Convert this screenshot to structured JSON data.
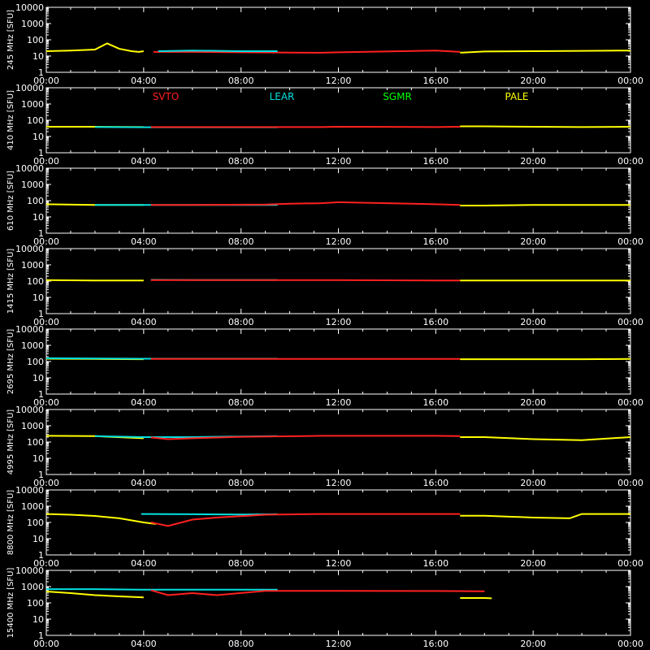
{
  "chart_data": {
    "type": "line",
    "xlim": [
      0,
      24
    ],
    "x_tick_labels": [
      "00:00",
      "04:00",
      "08:00",
      "12:00",
      "16:00",
      "20:00",
      "00:00"
    ],
    "y_scale": "log",
    "ylim": [
      1,
      10000
    ],
    "y_tick_labels": [
      "1",
      "10",
      "100",
      "1000",
      "10000"
    ],
    "ylabel_unit": "[SFU]",
    "legend": [
      {
        "label": "SVTO",
        "color": "#ff2020"
      },
      {
        "label": "LEAR",
        "color": "#00e0e0"
      },
      {
        "label": "SGMR",
        "color": "#00ff00"
      },
      {
        "label": "PALE",
        "color": "#ffff00"
      }
    ],
    "panels": [
      {
        "label": "245 MHz",
        "series": {
          "PALE": [
            [
              0,
              20
            ],
            [
              1,
              22
            ],
            [
              2,
              25
            ],
            [
              2.5,
              60
            ],
            [
              3,
              28
            ],
            [
              3.5,
              20
            ],
            [
              3.8,
              18
            ],
            [
              4,
              20
            ]
          ],
          "SVTO": [
            [
              4.4,
              18
            ],
            [
              6,
              18
            ],
            [
              8,
              17
            ],
            [
              11.3,
              16
            ],
            [
              12,
              17
            ],
            [
              16,
              22
            ],
            [
              17,
              18
            ]
          ],
          "LEAR": [
            [
              4.6,
              20
            ],
            [
              6,
              22
            ],
            [
              8,
              20
            ],
            [
              9.5,
              20
            ]
          ],
          "PALE2": [
            [
              17,
              16
            ],
            [
              18,
              19
            ],
            [
              20,
              20
            ],
            [
              22,
              21
            ],
            [
              24,
              22
            ]
          ]
        }
      },
      {
        "label": "410 MHz",
        "series": {
          "PALE": [
            [
              0,
              40
            ],
            [
              2,
              40
            ],
            [
              4,
              38
            ]
          ],
          "LEAR": [
            [
              2,
              38
            ],
            [
              4,
              37
            ],
            [
              6,
              37
            ],
            [
              9.5,
              37
            ]
          ],
          "SVTO": [
            [
              4.3,
              38
            ],
            [
              6,
              38
            ],
            [
              8,
              38
            ],
            [
              11.3,
              38
            ],
            [
              12,
              40
            ],
            [
              16,
              38
            ],
            [
              17,
              40
            ]
          ],
          "PALE2": [
            [
              17,
              42
            ],
            [
              18,
              42
            ],
            [
              20,
              40
            ],
            [
              22,
              38
            ],
            [
              24,
              40
            ]
          ]
        }
      },
      {
        "label": "610 MHz",
        "series": {
          "PALE": [
            [
              0,
              60
            ],
            [
              2,
              55
            ],
            [
              4,
              55
            ]
          ],
          "LEAR": [
            [
              2,
              55
            ],
            [
              4,
              55
            ],
            [
              6,
              55
            ],
            [
              9.5,
              55
            ]
          ],
          "SVTO": [
            [
              4.3,
              55
            ],
            [
              6,
              55
            ],
            [
              9,
              58
            ],
            [
              10,
              65
            ],
            [
              11.3,
              70
            ],
            [
              12,
              80
            ],
            [
              14,
              70
            ],
            [
              16,
              60
            ],
            [
              17,
              55
            ]
          ],
          "PALE2": [
            [
              17,
              50
            ],
            [
              18,
              50
            ],
            [
              20,
              55
            ],
            [
              22,
              55
            ],
            [
              24,
              55
            ]
          ]
        }
      },
      {
        "label": "1415 MHz",
        "series": {
          "PALE": [
            [
              0,
              115
            ],
            [
              2,
              110
            ],
            [
              4,
              110
            ]
          ],
          "LEAR": [
            [
              4.3,
              120
            ],
            [
              6,
              118
            ],
            [
              9.5,
              118
            ]
          ],
          "SVTO": [
            [
              4.3,
              115
            ],
            [
              6,
              115
            ],
            [
              9,
              115
            ],
            [
              11.3,
              115
            ],
            [
              12,
              115
            ],
            [
              16,
              110
            ],
            [
              17,
              110
            ]
          ],
          "PALE2": [
            [
              17,
              110
            ],
            [
              20,
              108
            ],
            [
              22,
              108
            ],
            [
              24,
              110
            ]
          ]
        }
      },
      {
        "label": "2695 MHz",
        "series": {
          "PALE": [
            [
              0,
              150
            ],
            [
              2,
              145
            ],
            [
              4,
              140
            ]
          ],
          "LEAR": [
            [
              0,
              160
            ],
            [
              4,
              150
            ],
            [
              6,
              150
            ],
            [
              9.5,
              150
            ]
          ],
          "SVTO": [
            [
              4.3,
              145
            ],
            [
              6,
              145
            ],
            [
              9,
              145
            ],
            [
              11.3,
              145
            ],
            [
              12,
              145
            ],
            [
              16,
              145
            ],
            [
              17,
              145
            ]
          ],
          "PALE2": [
            [
              17,
              140
            ],
            [
              20,
              140
            ],
            [
              22,
              140
            ],
            [
              24,
              145
            ]
          ]
        }
      },
      {
        "label": "4995 MHz",
        "series": {
          "PALE": [
            [
              0,
              240
            ],
            [
              2,
              230
            ],
            [
              4,
              170
            ]
          ],
          "LEAR": [
            [
              2,
              230
            ],
            [
              4,
              200
            ],
            [
              6,
              200
            ],
            [
              9.5,
              230
            ]
          ],
          "SVTO": [
            [
              4.3,
              190
            ],
            [
              5,
              150
            ],
            [
              6,
              170
            ],
            [
              8,
              210
            ],
            [
              11.3,
              240
            ],
            [
              12,
              240
            ],
            [
              16,
              240
            ],
            [
              17,
              230
            ]
          ],
          "PALE2": [
            [
              17,
              200
            ],
            [
              18,
              200
            ],
            [
              20,
              150
            ],
            [
              22,
              130
            ],
            [
              24,
              200
            ]
          ]
        }
      },
      {
        "label": "8800 MHz",
        "series": {
          "PALE": [
            [
              0,
              330
            ],
            [
              1,
              300
            ],
            [
              2,
              250
            ],
            [
              3,
              180
            ],
            [
              4,
              100
            ],
            [
              4.5,
              80
            ]
          ],
          "LEAR": [
            [
              3.9,
              330
            ],
            [
              6,
              320
            ],
            [
              8,
              310
            ],
            [
              9.5,
              320
            ]
          ],
          "SVTO": [
            [
              4.3,
              100
            ],
            [
              5,
              60
            ],
            [
              6,
              150
            ],
            [
              7,
              200
            ],
            [
              9,
              300
            ],
            [
              11.3,
              330
            ],
            [
              12,
              330
            ],
            [
              16,
              330
            ],
            [
              17,
              330
            ]
          ],
          "PALE2": [
            [
              17,
              260
            ],
            [
              18,
              260
            ],
            [
              20,
              200
            ],
            [
              21.5,
              180
            ],
            [
              22,
              330
            ],
            [
              24,
              330
            ]
          ]
        }
      },
      {
        "label": "15400 MHz",
        "series": {
          "PALE": [
            [
              0,
              500
            ],
            [
              1,
              400
            ],
            [
              2,
              300
            ],
            [
              3,
              250
            ],
            [
              4,
              220
            ]
          ],
          "LEAR": [
            [
              0,
              700
            ],
            [
              2,
              700
            ],
            [
              3.9,
              650
            ],
            [
              6,
              650
            ],
            [
              8,
              650
            ],
            [
              9.5,
              650
            ]
          ],
          "SVTO": [
            [
              4.3,
              600
            ],
            [
              5,
              300
            ],
            [
              6,
              400
            ],
            [
              7,
              300
            ],
            [
              9,
              550
            ],
            [
              11.3,
              550
            ],
            [
              12,
              550
            ],
            [
              16,
              540
            ],
            [
              18,
              520
            ]
          ],
          "PALE2": [
            [
              17,
              200
            ],
            [
              18,
              200
            ],
            [
              18.3,
              190
            ]
          ]
        }
      }
    ]
  }
}
